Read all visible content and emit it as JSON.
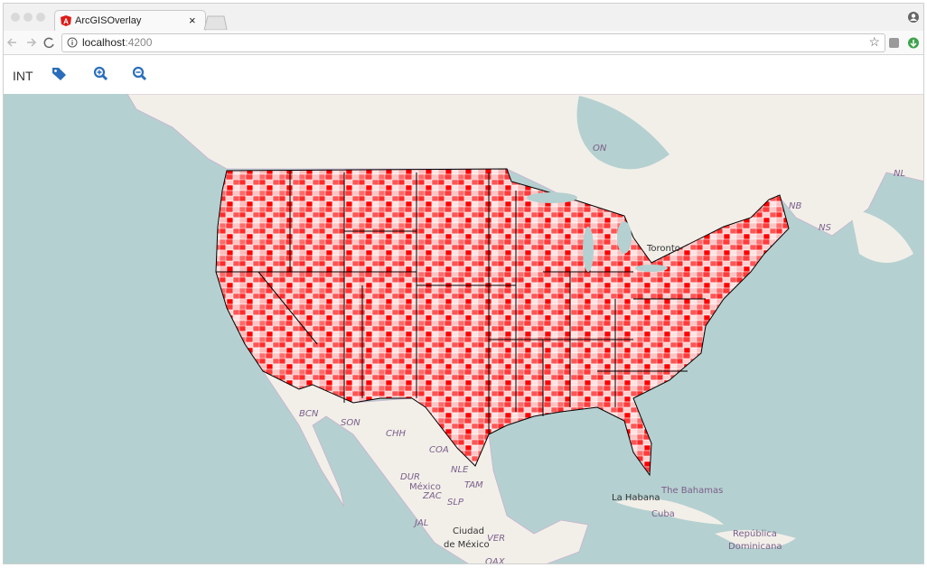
{
  "browser": {
    "tab_title": "ArcGISOverlay",
    "url_host": "localhost",
    "url_port": ":4200"
  },
  "toolbar": {
    "label": "INT"
  },
  "map": {
    "labels": [
      "ON",
      "NL",
      "NB",
      "NS",
      "Toronto",
      "BCN",
      "SON",
      "CHH",
      "COA",
      "DUR",
      "México",
      "ZAC",
      "NLE",
      "TAM",
      "SLP",
      "JAL",
      "Ciudad",
      "de México",
      "VER",
      "OAX",
      "La Habana",
      "Cuba",
      "The Bahamas",
      "República",
      "Dominicana"
    ]
  }
}
